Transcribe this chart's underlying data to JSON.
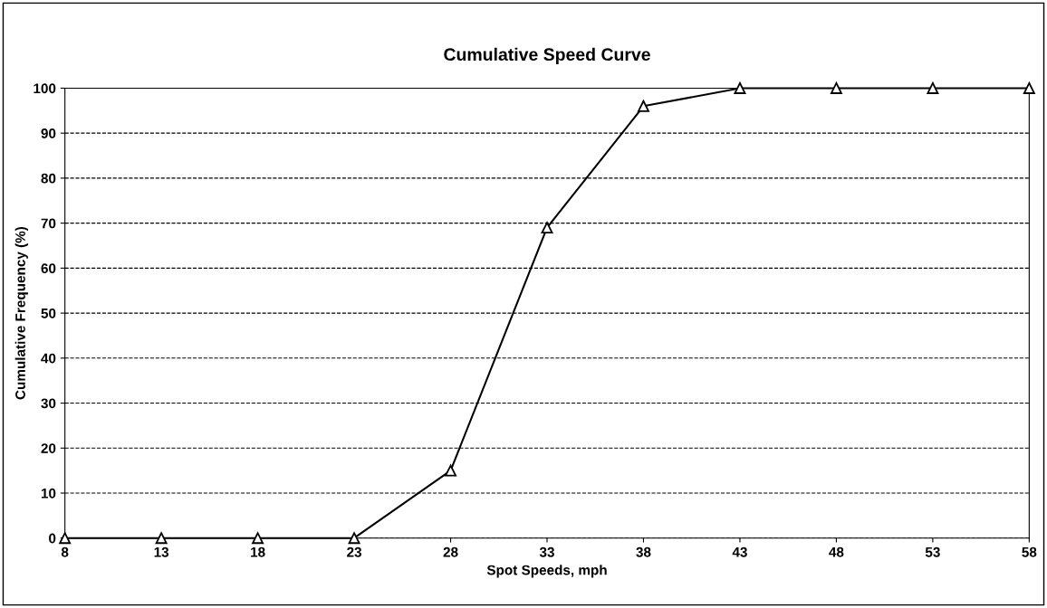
{
  "chart_data": {
    "type": "line",
    "title": "Cumulative Speed Curve",
    "xlabel": "Spot Speeds, mph",
    "ylabel": "Cumulative Frequency (%)",
    "x": [
      8,
      13,
      18,
      23,
      28,
      33,
      38,
      43,
      48,
      53,
      58
    ],
    "series": [
      {
        "color": "#000000",
        "values": [
          0,
          0,
          0,
          0,
          15,
          69,
          96,
          100,
          100,
          100,
          100
        ]
      }
    ],
    "xlim": [
      8,
      58
    ],
    "xticks": [
      8,
      13,
      18,
      23,
      28,
      33,
      38,
      43,
      48,
      53,
      58
    ],
    "ylim": [
      0,
      100
    ],
    "yticks": [
      0,
      10,
      20,
      30,
      40,
      50,
      60,
      70,
      80,
      90,
      100
    ],
    "grid": "y",
    "marker": "triangle",
    "line_style": "solid",
    "legend": false
  }
}
